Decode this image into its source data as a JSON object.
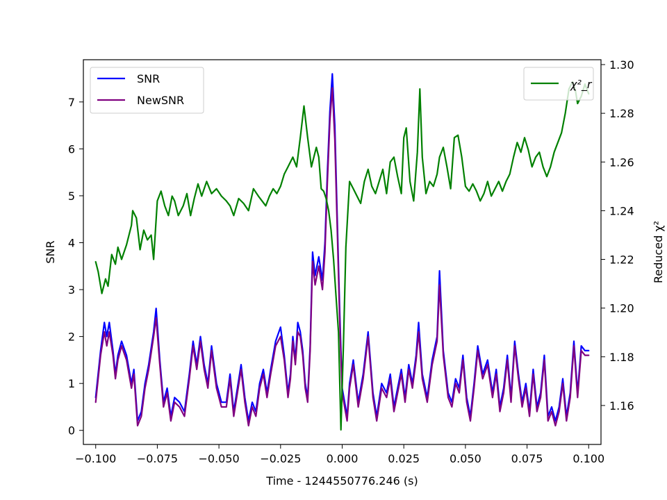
{
  "chart_data": {
    "type": "line",
    "xlabel": "Time - 1244550776.246 (s)",
    "ylabel_left": "SNR",
    "ylabel_right": "Reduced χ²",
    "xlim": [
      -0.105,
      0.105
    ],
    "ylim_left": [
      -0.3,
      7.9
    ],
    "ylim_right": [
      1.144,
      1.302
    ],
    "x_ticks": [
      -0.1,
      -0.075,
      -0.05,
      -0.025,
      0.0,
      0.025,
      0.05,
      0.075,
      0.1
    ],
    "x_tick_labels": [
      "−0.100",
      "−0.075",
      "−0.050",
      "−0.025",
      "0.000",
      "0.025",
      "0.050",
      "0.075",
      "0.100"
    ],
    "y_left_ticks": [
      0,
      1,
      2,
      3,
      4,
      5,
      6,
      7
    ],
    "y_left_tick_labels": [
      "0",
      "1",
      "2",
      "3",
      "4",
      "5",
      "6",
      "7"
    ],
    "y_right_ticks": [
      1.16,
      1.18,
      1.2,
      1.22,
      1.24,
      1.26,
      1.28,
      1.3
    ],
    "y_right_tick_labels": [
      "1.16",
      "1.18",
      "1.20",
      "1.22",
      "1.24",
      "1.26",
      "1.28",
      "1.30"
    ],
    "grid": false,
    "legend_left_placement": "upper-left",
    "legend_right_placement": "upper-right",
    "series": [
      {
        "name": "SNR",
        "axis": "left",
        "color": "#0000ff",
        "x": [
          -0.1,
          -0.098,
          -0.0965,
          -0.0955,
          -0.0945,
          -0.093,
          -0.092,
          -0.091,
          -0.0895,
          -0.0875,
          -0.0855,
          -0.0845,
          -0.083,
          -0.0815,
          -0.08,
          -0.0785,
          -0.0765,
          -0.0755,
          -0.074,
          -0.0725,
          -0.071,
          -0.0695,
          -0.068,
          -0.066,
          -0.064,
          -0.062,
          -0.0605,
          -0.059,
          -0.0575,
          -0.056,
          -0.0545,
          -0.053,
          -0.051,
          -0.049,
          -0.047,
          -0.0455,
          -0.044,
          -0.0425,
          -0.041,
          -0.0395,
          -0.038,
          -0.0365,
          -0.035,
          -0.0335,
          -0.032,
          -0.0305,
          -0.029,
          -0.027,
          -0.025,
          -0.0235,
          -0.022,
          -0.021,
          -0.02,
          -0.019,
          -0.018,
          -0.017,
          -0.016,
          -0.015,
          -0.014,
          -0.013,
          -0.012,
          -0.011,
          -0.0095,
          -0.008,
          -0.007,
          -0.006,
          -0.005,
          -0.004,
          -0.003,
          -0.002,
          -0.001,
          0.0,
          0.001,
          0.002,
          0.003,
          0.0045,
          0.0065,
          0.0085,
          0.0105,
          0.0125,
          0.014,
          0.016,
          0.018,
          0.0195,
          0.021,
          0.0225,
          0.024,
          0.0255,
          0.027,
          0.0285,
          0.03,
          0.031,
          0.0325,
          0.0345,
          0.0365,
          0.0385,
          0.0395,
          0.041,
          0.043,
          0.0445,
          0.046,
          0.0475,
          0.049,
          0.0505,
          0.052,
          0.0535,
          0.055,
          0.057,
          0.059,
          0.061,
          0.0625,
          0.064,
          0.0655,
          0.067,
          0.0685,
          0.07,
          0.0715,
          0.073,
          0.0745,
          0.076,
          0.0775,
          0.079,
          0.0805,
          0.082,
          0.0835,
          0.085,
          0.0865,
          0.088,
          0.0895,
          0.091,
          0.0925,
          0.094,
          0.0955,
          0.097,
          0.0985,
          0.1
        ],
        "values": [
          0.7,
          1.7,
          2.3,
          2.0,
          2.3,
          1.7,
          1.2,
          1.6,
          1.9,
          1.6,
          1.0,
          1.3,
          0.2,
          0.4,
          1.0,
          1.4,
          2.1,
          2.6,
          1.5,
          0.6,
          0.9,
          0.3,
          0.7,
          0.6,
          0.4,
          1.2,
          1.9,
          1.4,
          2.0,
          1.4,
          1.0,
          1.8,
          1.0,
          0.6,
          0.6,
          1.2,
          0.4,
          0.9,
          1.4,
          0.7,
          0.2,
          0.6,
          0.4,
          1.0,
          1.3,
          0.8,
          1.3,
          1.9,
          2.2,
          1.6,
          0.8,
          1.2,
          2.0,
          1.5,
          2.3,
          2.1,
          1.7,
          1.0,
          0.7,
          1.8,
          3.8,
          3.3,
          3.7,
          3.2,
          4.0,
          5.5,
          6.8,
          7.6,
          6.5,
          4.5,
          2.5,
          0.9,
          0.6,
          0.3,
          1.0,
          1.5,
          0.6,
          1.2,
          2.1,
          0.8,
          0.3,
          1.0,
          0.8,
          1.2,
          0.5,
          0.9,
          1.3,
          0.7,
          1.4,
          1.0,
          1.6,
          2.3,
          1.2,
          0.7,
          1.5,
          2.0,
          3.4,
          1.7,
          0.8,
          0.6,
          1.1,
          0.9,
          1.6,
          0.7,
          0.3,
          1.0,
          1.8,
          1.2,
          1.5,
          0.8,
          1.3,
          0.5,
          0.9,
          1.6,
          0.7,
          1.9,
          1.2,
          0.6,
          1.0,
          0.4,
          1.3,
          0.5,
          0.8,
          1.6,
          0.3,
          0.5,
          0.2,
          0.5,
          1.1,
          0.3,
          0.8,
          1.9,
          0.8,
          1.8,
          1.7,
          1.7
        ]
      },
      {
        "name": "NewSNR",
        "axis": "left",
        "color": "#800080",
        "x": [
          -0.1,
          -0.098,
          -0.0965,
          -0.0955,
          -0.0945,
          -0.093,
          -0.092,
          -0.091,
          -0.0895,
          -0.0875,
          -0.0855,
          -0.0845,
          -0.083,
          -0.0815,
          -0.08,
          -0.0785,
          -0.0765,
          -0.0755,
          -0.074,
          -0.0725,
          -0.071,
          -0.0695,
          -0.068,
          -0.066,
          -0.064,
          -0.062,
          -0.0605,
          -0.059,
          -0.0575,
          -0.056,
          -0.0545,
          -0.053,
          -0.051,
          -0.049,
          -0.047,
          -0.0455,
          -0.044,
          -0.0425,
          -0.041,
          -0.0395,
          -0.038,
          -0.0365,
          -0.035,
          -0.0335,
          -0.032,
          -0.0305,
          -0.029,
          -0.027,
          -0.025,
          -0.0235,
          -0.022,
          -0.021,
          -0.02,
          -0.019,
          -0.018,
          -0.017,
          -0.016,
          -0.015,
          -0.014,
          -0.013,
          -0.012,
          -0.011,
          -0.0095,
          -0.008,
          -0.007,
          -0.006,
          -0.005,
          -0.004,
          -0.003,
          -0.002,
          -0.001,
          0.0,
          0.001,
          0.002,
          0.003,
          0.0045,
          0.0065,
          0.0085,
          0.0105,
          0.0125,
          0.014,
          0.016,
          0.018,
          0.0195,
          0.021,
          0.0225,
          0.024,
          0.0255,
          0.027,
          0.0285,
          0.03,
          0.031,
          0.0325,
          0.0345,
          0.0365,
          0.0385,
          0.0395,
          0.041,
          0.043,
          0.0445,
          0.046,
          0.0475,
          0.049,
          0.0505,
          0.052,
          0.0535,
          0.055,
          0.057,
          0.059,
          0.061,
          0.0625,
          0.064,
          0.0655,
          0.067,
          0.0685,
          0.07,
          0.0715,
          0.073,
          0.0745,
          0.076,
          0.0775,
          0.079,
          0.0805,
          0.082,
          0.0835,
          0.085,
          0.0865,
          0.088,
          0.0895,
          0.091,
          0.0925,
          0.094,
          0.0955,
          0.097,
          0.0985,
          0.1
        ],
        "values": [
          0.6,
          1.6,
          2.1,
          1.8,
          2.1,
          1.6,
          1.1,
          1.5,
          1.8,
          1.5,
          0.9,
          1.2,
          0.1,
          0.3,
          0.9,
          1.3,
          2.0,
          2.4,
          1.4,
          0.5,
          0.8,
          0.2,
          0.6,
          0.5,
          0.3,
          1.1,
          1.8,
          1.3,
          1.9,
          1.3,
          0.9,
          1.7,
          0.9,
          0.5,
          0.5,
          1.1,
          0.3,
          0.8,
          1.3,
          0.6,
          0.1,
          0.5,
          0.3,
          0.9,
          1.2,
          0.7,
          1.2,
          1.8,
          2.0,
          1.5,
          0.7,
          1.1,
          1.9,
          1.4,
          2.1,
          2.0,
          1.6,
          0.9,
          0.6,
          1.7,
          3.6,
          3.1,
          3.5,
          3.0,
          3.8,
          5.3,
          6.6,
          7.3,
          6.2,
          4.3,
          2.3,
          0.8,
          0.5,
          0.2,
          0.9,
          1.4,
          0.5,
          1.1,
          2.0,
          0.7,
          0.2,
          0.9,
          0.7,
          1.1,
          0.4,
          0.8,
          1.2,
          0.6,
          1.3,
          0.9,
          1.5,
          2.1,
          1.1,
          0.6,
          1.4,
          1.9,
          3.1,
          1.6,
          0.7,
          0.5,
          1.0,
          0.8,
          1.5,
          0.6,
          0.2,
          0.9,
          1.7,
          1.1,
          1.4,
          0.7,
          1.2,
          0.4,
          0.8,
          1.5,
          0.6,
          1.8,
          1.1,
          0.5,
          0.9,
          0.3,
          1.2,
          0.4,
          0.7,
          1.5,
          0.2,
          0.4,
          0.1,
          0.4,
          1.0,
          0.2,
          0.7,
          1.8,
          0.7,
          1.7,
          1.6,
          1.6
        ]
      },
      {
        "name": "χ²_r",
        "axis": "right",
        "color": "#008000",
        "x": [
          -0.1,
          -0.099,
          -0.0975,
          -0.096,
          -0.095,
          -0.0935,
          -0.092,
          -0.091,
          -0.0895,
          -0.0875,
          -0.0855,
          -0.085,
          -0.0835,
          -0.082,
          -0.0805,
          -0.079,
          -0.0775,
          -0.0765,
          -0.075,
          -0.0735,
          -0.072,
          -0.0705,
          -0.069,
          -0.068,
          -0.0665,
          -0.0645,
          -0.063,
          -0.0615,
          -0.06,
          -0.0585,
          -0.057,
          -0.055,
          -0.053,
          -0.051,
          -0.049,
          -0.047,
          -0.0455,
          -0.044,
          -0.042,
          -0.04,
          -0.038,
          -0.036,
          -0.034,
          -0.0325,
          -0.031,
          -0.0295,
          -0.028,
          -0.0265,
          -0.025,
          -0.0235,
          -0.022,
          -0.02,
          -0.0185,
          -0.017,
          -0.0155,
          -0.014,
          -0.0125,
          -0.0115,
          -0.0105,
          -0.0095,
          -0.0085,
          -0.0075,
          -0.0065,
          -0.0055,
          -0.0045,
          -0.0035,
          -0.0025,
          -0.0015,
          -0.0005,
          0.0005,
          0.0015,
          0.003,
          0.0045,
          0.006,
          0.0075,
          0.009,
          0.0105,
          0.012,
          0.0135,
          0.015,
          0.0165,
          0.018,
          0.0195,
          0.021,
          0.0225,
          0.024,
          0.025,
          0.026,
          0.0275,
          0.029,
          0.0305,
          0.0315,
          0.0325,
          0.034,
          0.0355,
          0.037,
          0.0385,
          0.0395,
          0.041,
          0.0425,
          0.044,
          0.0455,
          0.047,
          0.0485,
          0.05,
          0.0515,
          0.053,
          0.0545,
          0.056,
          0.0575,
          0.059,
          0.0605,
          0.062,
          0.0635,
          0.065,
          0.0665,
          0.068,
          0.0695,
          0.071,
          0.0725,
          0.074,
          0.0755,
          0.077,
          0.0785,
          0.08,
          0.0815,
          0.083,
          0.0845,
          0.086,
          0.0875,
          0.089,
          0.0905,
          0.092,
          0.0935,
          0.0945,
          0.0955,
          0.097,
          0.0985,
          0.1
        ],
        "values": [
          1.219,
          1.215,
          1.206,
          1.212,
          1.209,
          1.222,
          1.218,
          1.225,
          1.22,
          1.226,
          1.234,
          1.24,
          1.237,
          1.224,
          1.232,
          1.228,
          1.23,
          1.22,
          1.244,
          1.248,
          1.242,
          1.238,
          1.246,
          1.244,
          1.238,
          1.242,
          1.247,
          1.238,
          1.245,
          1.251,
          1.246,
          1.252,
          1.247,
          1.249,
          1.246,
          1.244,
          1.242,
          1.238,
          1.245,
          1.243,
          1.24,
          1.249,
          1.246,
          1.244,
          1.242,
          1.246,
          1.249,
          1.247,
          1.25,
          1.255,
          1.258,
          1.262,
          1.258,
          1.27,
          1.283,
          1.27,
          1.258,
          1.262,
          1.266,
          1.262,
          1.249,
          1.248,
          1.245,
          1.24,
          1.232,
          1.22,
          1.205,
          1.19,
          1.15,
          1.185,
          1.225,
          1.252,
          1.249,
          1.246,
          1.243,
          1.252,
          1.257,
          1.25,
          1.247,
          1.252,
          1.257,
          1.247,
          1.26,
          1.262,
          1.254,
          1.247,
          1.27,
          1.274,
          1.252,
          1.244,
          1.264,
          1.29,
          1.262,
          1.247,
          1.252,
          1.25,
          1.255,
          1.262,
          1.266,
          1.258,
          1.249,
          1.27,
          1.271,
          1.262,
          1.25,
          1.248,
          1.251,
          1.248,
          1.244,
          1.247,
          1.252,
          1.246,
          1.249,
          1.252,
          1.248,
          1.252,
          1.255,
          1.262,
          1.268,
          1.264,
          1.27,
          1.265,
          1.258,
          1.262,
          1.264,
          1.258,
          1.254,
          1.258,
          1.264,
          1.268,
          1.272,
          1.28,
          1.29,
          1.293,
          1.29,
          1.284,
          1.287,
          1.292,
          1.288
        ]
      }
    ]
  }
}
